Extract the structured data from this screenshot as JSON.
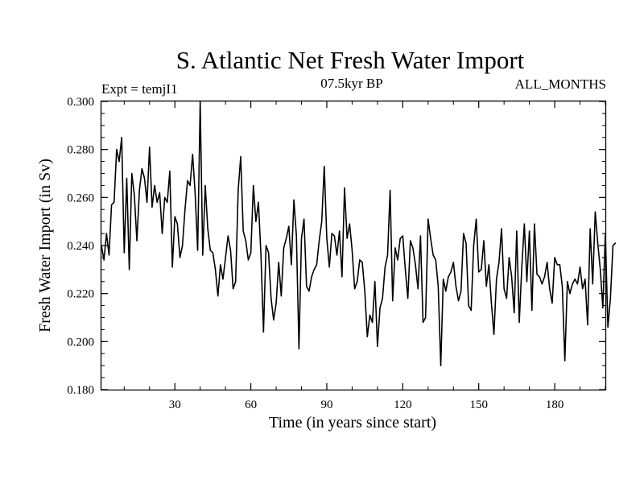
{
  "chart_data": {
    "type": "line",
    "title": "S. Atlantic Net Fresh Water Import",
    "subtitle_left": "Expt = temjI1",
    "subtitle_center": "07.5kyr BP",
    "subtitle_right": "ALL_MONTHS",
    "xlabel": "Time (in years since start)",
    "ylabel": "Fresh Water Import (in Sv)",
    "xlim": [
      1,
      200
    ],
    "ylim": [
      0.18,
      0.3
    ],
    "xticks": [
      30,
      60,
      90,
      120,
      150,
      180
    ],
    "xtick_labels": [
      "30",
      "60",
      "90",
      "120",
      "150",
      "180"
    ],
    "yticks": [
      0.18,
      0.2,
      0.22,
      0.24,
      0.26,
      0.28,
      0.3
    ],
    "ytick_labels": [
      "0.180",
      "0.200",
      "0.220",
      "0.240",
      "0.260",
      "0.280",
      "0.300"
    ],
    "series": [
      {
        "name": "fresh_water_import",
        "x_start": 1,
        "x_step": 1,
        "values": [
          0.24,
          0.234,
          0.245,
          0.236,
          0.257,
          0.258,
          0.28,
          0.275,
          0.285,
          0.237,
          0.268,
          0.23,
          0.27,
          0.261,
          0.242,
          0.263,
          0.272,
          0.268,
          0.258,
          0.281,
          0.256,
          0.265,
          0.258,
          0.262,
          0.245,
          0.26,
          0.258,
          0.271,
          0.231,
          0.252,
          0.249,
          0.235,
          0.24,
          0.255,
          0.267,
          0.265,
          0.278,
          0.262,
          0.238,
          0.3,
          0.236,
          0.265,
          0.247,
          0.238,
          0.237,
          0.23,
          0.219,
          0.232,
          0.226,
          0.235,
          0.244,
          0.238,
          0.222,
          0.225,
          0.263,
          0.277,
          0.246,
          0.242,
          0.234,
          0.237,
          0.265,
          0.25,
          0.258,
          0.236,
          0.204,
          0.24,
          0.237,
          0.218,
          0.209,
          0.216,
          0.233,
          0.219,
          0.239,
          0.243,
          0.248,
          0.232,
          0.259,
          0.244,
          0.197,
          0.243,
          0.251,
          0.223,
          0.221,
          0.227,
          0.23,
          0.232,
          0.242,
          0.25,
          0.273,
          0.243,
          0.231,
          0.245,
          0.244,
          0.236,
          0.246,
          0.227,
          0.264,
          0.243,
          0.249,
          0.238,
          0.222,
          0.225,
          0.234,
          0.233,
          0.221,
          0.202,
          0.211,
          0.208,
          0.225,
          0.198,
          0.214,
          0.218,
          0.231,
          0.236,
          0.263,
          0.217,
          0.239,
          0.234,
          0.243,
          0.244,
          0.23,
          0.218,
          0.242,
          0.239,
          0.232,
          0.222,
          0.244,
          0.208,
          0.21,
          0.251,
          0.243,
          0.236,
          0.234,
          0.223,
          0.19,
          0.226,
          0.221,
          0.227,
          0.229,
          0.233,
          0.223,
          0.217,
          0.221,
          0.245,
          0.241,
          0.215,
          0.213,
          0.24,
          0.251,
          0.229,
          0.23,
          0.242,
          0.223,
          0.232,
          0.216,
          0.203,
          0.226,
          0.233,
          0.247,
          0.222,
          0.218,
          0.235,
          0.227,
          0.212,
          0.246,
          0.208,
          0.231,
          0.249,
          0.225,
          0.246,
          0.213,
          0.249,
          0.228,
          0.227,
          0.224,
          0.227,
          0.233,
          0.222,
          0.216,
          0.235,
          0.232,
          0.232,
          0.223,
          0.192,
          0.225,
          0.22,
          0.224,
          0.226,
          0.224,
          0.231,
          0.222,
          0.226,
          0.207,
          0.247,
          0.224,
          0.254,
          0.241,
          0.23,
          0.214,
          0.245,
          0.206,
          0.218,
          0.24,
          0.241
        ]
      }
    ]
  }
}
